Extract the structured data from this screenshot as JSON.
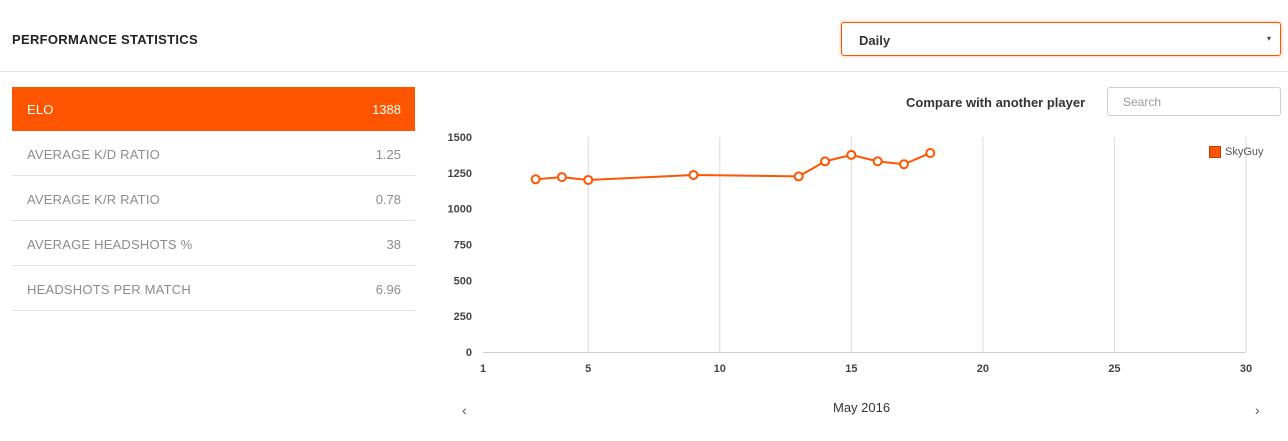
{
  "header": {
    "title": "PERFORMANCE STATISTICS",
    "period_select": {
      "value": "Daily",
      "caret": "▾"
    }
  },
  "stats": [
    {
      "label": "ELO",
      "value": "1388",
      "active": true
    },
    {
      "label": "AVERAGE K/D RATIO",
      "value": "1.25",
      "active": false
    },
    {
      "label": "AVERAGE K/R RATIO",
      "value": "0.78",
      "active": false
    },
    {
      "label": "AVERAGE HEADSHOTS %",
      "value": "38",
      "active": false
    },
    {
      "label": "HEADSHOTS PER MATCH",
      "value": "6.96",
      "active": false
    }
  ],
  "compare": {
    "label": "Compare with another player",
    "search_placeholder": "Search",
    "search_value": ""
  },
  "navigation": {
    "prev_icon": "‹",
    "next_icon": "›",
    "month_label": "May 2016"
  },
  "colors": {
    "accent": "#ff5500",
    "grid": "#d9d9d9",
    "text_muted": "#8c8c8c"
  },
  "chart_data": {
    "type": "line",
    "x_ticks": [
      1,
      5,
      10,
      15,
      20,
      25,
      30
    ],
    "y_ticks": [
      0,
      250,
      500,
      750,
      1000,
      1250,
      1500
    ],
    "xlim": [
      1,
      30
    ],
    "ylim": [
      0,
      1500
    ],
    "grid": {
      "vertical": true,
      "horizontal": false
    },
    "legend_position": "top-right",
    "series": [
      {
        "name": "SkyGuy",
        "color": "#ff5500",
        "x": [
          3,
          4,
          5,
          9,
          13,
          14,
          15,
          16,
          17,
          18
        ],
        "y": [
          1205,
          1220,
          1200,
          1235,
          1225,
          1330,
          1375,
          1330,
          1310,
          1388
        ]
      }
    ]
  }
}
